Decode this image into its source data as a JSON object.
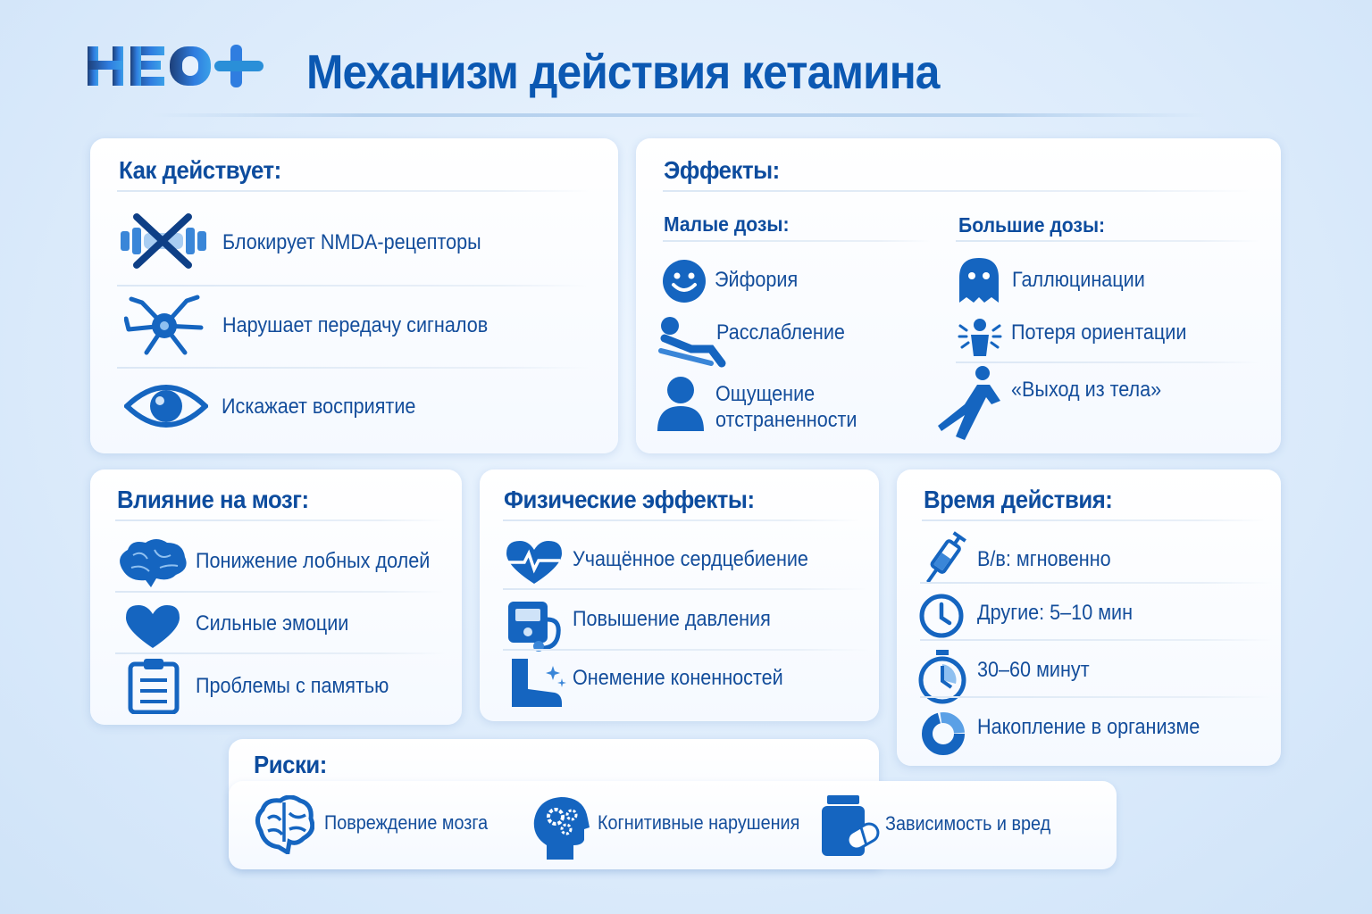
{
  "logo": "НЕО+",
  "title": "Механизм действия кетамина",
  "colors": {
    "primary": "#0b58b2",
    "text": "#134d9b",
    "icon": "#1565c0",
    "background": "#dcebfb"
  },
  "how": {
    "heading": "Как действует:",
    "items": [
      {
        "icon": "blocked-receptor-icon",
        "label": "Блокирует NMDA-рецепторы"
      },
      {
        "icon": "neuron-icon",
        "label": "Нарушает передачу сигналов"
      },
      {
        "icon": "eye-icon",
        "label": "Искажает восприятие"
      }
    ]
  },
  "effects": {
    "heading": "Эффекты:",
    "low": {
      "heading": "Малые дозы:",
      "items": [
        {
          "icon": "smiley-icon",
          "label": "Эйфория"
        },
        {
          "icon": "reclining-person-icon",
          "label": "Расслабление"
        },
        {
          "icon": "person-icon",
          "label": "Ощущение",
          "label2": "отстраненности"
        }
      ]
    },
    "high": {
      "heading": "Большие дозы:",
      "items": [
        {
          "icon": "ghost-icon",
          "label": "Галлюцинации"
        },
        {
          "icon": "dizzy-person-icon",
          "label": "Потеря ориентации"
        },
        {
          "icon": "floating-person-icon",
          "label": "«Выход из тела»"
        }
      ]
    }
  },
  "brain": {
    "heading": "Влияние на мозг:",
    "items": [
      {
        "icon": "brain-icon",
        "label": "Понижение лобных долей"
      },
      {
        "icon": "heart-icon",
        "label": "Сильные эмоции"
      },
      {
        "icon": "clipboard-icon",
        "label": "Проблемы с памятью"
      }
    ]
  },
  "physical": {
    "heading": "Физические эффекты:",
    "items": [
      {
        "icon": "heartbeat-icon",
        "label": "Учащённое сердцебиение"
      },
      {
        "icon": "blood-pressure-icon",
        "label": "Повышение давления"
      },
      {
        "icon": "boot-icon",
        "label": "Онемение коненностей"
      }
    ]
  },
  "timing": {
    "heading": "Время действия:",
    "items": [
      {
        "icon": "syringe-icon",
        "label": "В/в: мгновенно"
      },
      {
        "icon": "clock-icon",
        "label": "Другие: 5–10 мин"
      },
      {
        "icon": "stopwatch-icon",
        "label": "30–60 минут"
      },
      {
        "icon": "ring-chart-icon",
        "label": "Накопление в организме"
      }
    ]
  },
  "risks": {
    "heading": "Риски:",
    "items": [
      {
        "icon": "brain-icon",
        "label": "Повреждение мозга"
      },
      {
        "icon": "head-gears-icon",
        "label": "Когнитивные нарушения"
      },
      {
        "icon": "pill-bottle-icon",
        "label": "Зависимость и вред"
      }
    ]
  }
}
